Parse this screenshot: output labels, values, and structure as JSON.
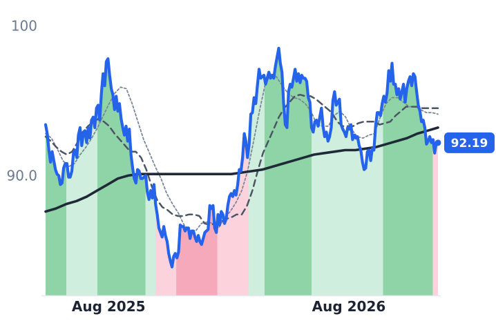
{
  "chart_data": {
    "type": "line",
    "title": "",
    "xlabel": "",
    "ylabel": "",
    "x_range": [
      "2025-07",
      "2026-10"
    ],
    "x_ticks": [
      {
        "label": "Aug 2025",
        "x": "2025-08"
      },
      {
        "label": "Aug 2026",
        "x": "2026-08"
      }
    ],
    "y_ticks": [
      {
        "label": "100",
        "value": 100
      },
      {
        "label": "90.0",
        "value": 90
      }
    ],
    "ylim": [
      82,
      100.8
    ],
    "grid": false,
    "last_value": {
      "label": "92.19",
      "value": 92.19
    },
    "colors": {
      "price": "#2563eb",
      "long_ma": "#1f2937",
      "mid_ma": "#4b5563",
      "short_ma": "#7a8697",
      "up_dark": "#8fd4a6",
      "up_light": "#cfeedd",
      "down_dark": "#f5a9ba",
      "down_light": "#fcd3dd",
      "badge": "#2563eb"
    },
    "series": [
      {
        "role": "price",
        "values": [
          93.4,
          92.8,
          91.7,
          90.9,
          91.6,
          91.0,
          90.4,
          90.1,
          90.0,
          89.4,
          89.5,
          90.5,
          90.8,
          90.8,
          89.9,
          89.9,
          90.3,
          91.5,
          91.7,
          91.2,
          92.7,
          93.2,
          92.0,
          92.8,
          93.0,
          92.2,
          93.2,
          92.5,
          93.7,
          93.9,
          93.2,
          94.5,
          94.7,
          93.7,
          95.5,
          96.8,
          96.0,
          97.6,
          97.8,
          96.7,
          95.8,
          95.4,
          94.4,
          95.3,
          94.3,
          94.8,
          93.8,
          93.2,
          92.7,
          93.3,
          92.3,
          93.1,
          91.4,
          90.5,
          89.8,
          89.5,
          90.4,
          90.3,
          89.8,
          89.8,
          89.9,
          90.0,
          88.9,
          88.4,
          89.0,
          88.5,
          89.4,
          88.1,
          87.4,
          86.5,
          86.2,
          85.9,
          86.6,
          86.0,
          85.6,
          84.8,
          84.3,
          83.9,
          84.6,
          84.8,
          84.5,
          84.9,
          86.7,
          86.6,
          86.6,
          86.3,
          86.5,
          86.5,
          85.8,
          86.3,
          86.3,
          85.9,
          85.6,
          86.0,
          85.6,
          85.4,
          85.8,
          86.2,
          86.3,
          86.4,
          88.0,
          87.8,
          88.0,
          86.5,
          86.2,
          87.4,
          86.7,
          87.6,
          87.4,
          86.8,
          87.1,
          88.0,
          88.6,
          88.8,
          88.6,
          89.0,
          88.7,
          89.4,
          90.4,
          90.3,
          91.2,
          92.8,
          92.3,
          91.2,
          92.1,
          94.1,
          94.2,
          95.2,
          94.8,
          96.0,
          97.1,
          96.5,
          96.6,
          96.7,
          96.1,
          96.5,
          96.9,
          96.5,
          96.7,
          96.5,
          97.3,
          97.9,
          98.5,
          97.5,
          96.9,
          94.8,
          93.4,
          93.2,
          95.6,
          96.1,
          95.9,
          96.5,
          97.1,
          96.3,
          96.8,
          96.2,
          96.7,
          96.5,
          96.5,
          96.3,
          95.2,
          94.9,
          93.2,
          92.9,
          93.6,
          93.7,
          93.3,
          93.9,
          94.5,
          93.3,
          92.6,
          92.9,
          92.3,
          92.6,
          93.2,
          95.0,
          95.6,
          94.7,
          94.9,
          95.1,
          93.4,
          93.1,
          92.9,
          92.6,
          93.2,
          93.1,
          93.4,
          92.4,
          92.7,
          92.5,
          92.6,
          92.0,
          91.7,
          90.9,
          90.4,
          90.5,
          91.6,
          91.7,
          91.0,
          91.8,
          91.7,
          93.3,
          94.2,
          94.2,
          94.0,
          94.8,
          95.3,
          94.9,
          95.5,
          97.0,
          96.3,
          97.5,
          96.1,
          96.1,
          95.4,
          95.8,
          95.1,
          95.6,
          96.1,
          94.9,
          95.8,
          96.3,
          96.6,
          96.0,
          96.8,
          96.6,
          95.6,
          94.7,
          94.3,
          93.6,
          93.7,
          93.2,
          92.1,
          92.3,
          92.6,
          92.2,
          92.4,
          91.5,
          92.2,
          92.19
        ]
      },
      {
        "role": "long_ma",
        "values": [
          87.6,
          87.8,
          88.1,
          88.3,
          88.6,
          89.0,
          89.4,
          89.8,
          90.0,
          90.1,
          90.1,
          90.1,
          90.1,
          90.1,
          90.1,
          90.1,
          90.1,
          90.1,
          90.1,
          90.2,
          90.3,
          90.4,
          90.6,
          90.8,
          91.0,
          91.2,
          91.4,
          91.5,
          91.6,
          91.7,
          91.7,
          91.8,
          91.9,
          92.1,
          92.3,
          92.5,
          92.8,
          93.0,
          93.2
        ]
      },
      {
        "role": "mid_ma",
        "values": [
          92.6,
          92.3,
          91.9,
          91.6,
          91.4,
          91.6,
          92.2,
          92.9,
          93.3,
          93.6,
          93.8,
          93.6,
          93.3,
          92.8,
          92.4,
          92.0,
          91.6,
          91.6,
          91.2,
          90.4,
          89.3,
          88.4,
          87.9,
          87.7,
          87.4,
          87.3,
          87.3,
          87.4,
          87.4,
          87.3,
          86.8,
          86.7,
          86.8,
          86.9,
          87.1,
          87.2,
          87.4,
          87.4,
          88.0,
          89.0,
          90.3,
          91.5,
          92.3,
          93.1,
          93.9,
          94.5,
          94.9,
          95.3,
          95.4,
          95.3,
          95.3,
          95.1,
          94.8,
          94.5,
          94.2,
          93.6,
          93.3,
          93.3,
          93.3,
          93.5,
          93.6,
          93.6,
          93.6,
          93.4,
          93.5,
          93.6,
          94.0,
          94.3,
          94.6,
          94.6,
          94.6,
          94.5,
          94.5,
          94.5,
          94.5
        ]
      },
      {
        "role": "short_ma",
        "values": [
          92.8,
          92.5,
          91.8,
          91.0,
          90.6,
          90.8,
          91.4,
          91.9,
          92.5,
          93.2,
          94.0,
          94.8,
          95.5,
          95.9,
          95.8,
          94.8,
          93.6,
          92.4,
          91.5,
          90.6,
          89.8,
          88.8,
          88.1,
          87.5,
          86.7,
          86.3,
          86.3,
          86.8,
          86.9,
          86.8,
          86.5,
          87.2,
          87.6,
          88.2,
          89.0,
          90.3,
          92.2,
          94.2,
          96.0,
          96.8,
          96.6,
          96.0,
          95.5,
          95.2,
          95.1,
          94.8,
          94.3,
          93.4,
          93.3,
          93.3,
          94.0,
          94.3,
          93.9,
          93.1,
          92.6,
          92.5,
          92.7,
          92.8,
          93.9,
          94.8,
          95.2,
          95.2,
          94.9,
          94.6,
          94.6,
          94.4,
          94.2,
          94.2,
          94.1
        ]
      }
    ],
    "regions": [
      {
        "from": 0,
        "to": 0.053,
        "trend": "up",
        "shade": "dark"
      },
      {
        "from": 0.053,
        "to": 0.132,
        "trend": "up",
        "shade": "light"
      },
      {
        "from": 0.132,
        "to": 0.255,
        "trend": "up",
        "shade": "dark"
      },
      {
        "from": 0.255,
        "to": 0.28,
        "trend": "up",
        "shade": "light"
      },
      {
        "from": 0.28,
        "to": 0.333,
        "trend": "down",
        "shade": "light"
      },
      {
        "from": 0.333,
        "to": 0.438,
        "trend": "down",
        "shade": "dark"
      },
      {
        "from": 0.438,
        "to": 0.518,
        "trend": "down",
        "shade": "light"
      },
      {
        "from": 0.518,
        "to": 0.558,
        "trend": "up",
        "shade": "light"
      },
      {
        "from": 0.558,
        "to": 0.678,
        "trend": "up",
        "shade": "dark"
      },
      {
        "from": 0.678,
        "to": 0.86,
        "trend": "up",
        "shade": "light"
      },
      {
        "from": 0.86,
        "to": 0.987,
        "trend": "up",
        "shade": "dark"
      },
      {
        "from": 0.987,
        "to": 1.0,
        "trend": "down",
        "shade": "light"
      }
    ]
  }
}
